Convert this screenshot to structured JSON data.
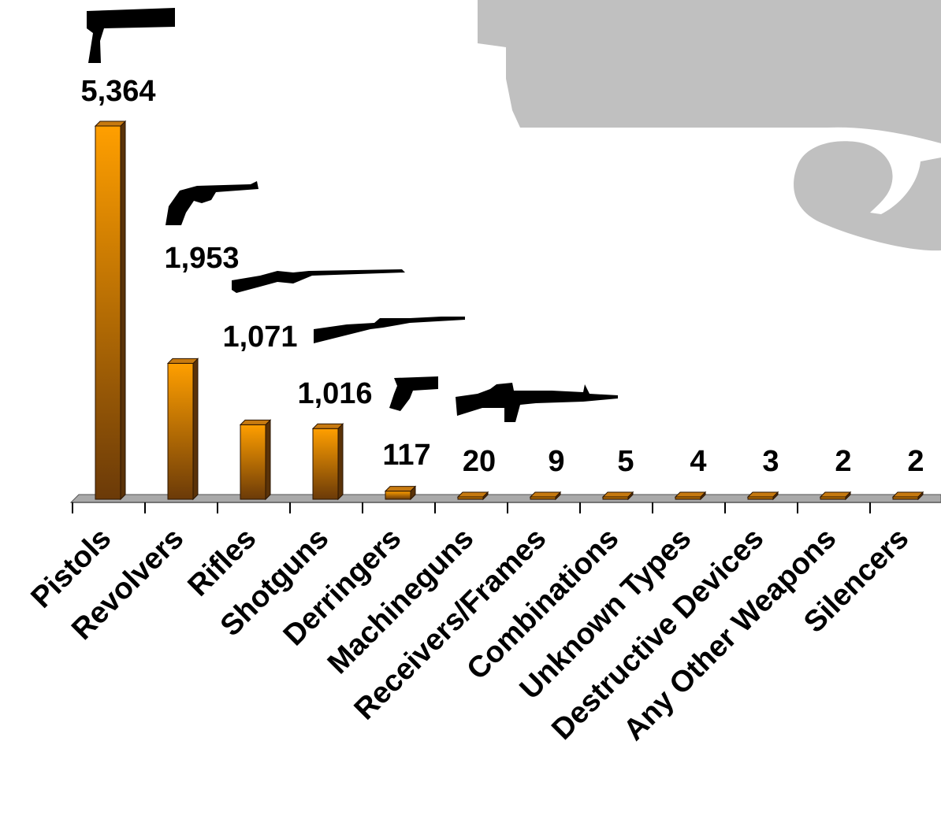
{
  "chart_data": {
    "type": "bar",
    "categories": [
      "Pistols",
      "Revolvers",
      "Rifles",
      "Shotguns",
      "Derringers",
      "Machineguns",
      "Receivers/Frames",
      "Combinations",
      "Unknown Types",
      "Destructive Devices",
      "Any Other Weapons",
      "Silencers"
    ],
    "values": [
      5364,
      1953,
      1071,
      1016,
      117,
      20,
      9,
      5,
      4,
      3,
      2,
      2
    ],
    "value_labels": [
      "5,364",
      "1,953",
      "1,071",
      "1,016",
      "117",
      "20",
      "9",
      "5",
      "4",
      "3",
      "2",
      "2"
    ],
    "title": "",
    "xlabel": "",
    "ylabel": "",
    "ylim": [
      0,
      5364
    ],
    "grid": false,
    "legend": "none"
  },
  "colors": {
    "bar_top": "#ff9f00",
    "bar_bottom": "#6b3a08",
    "bar_side": "#5a3208",
    "bar_cap": "#c77a10",
    "floor": "#a9a9a9",
    "background_gun": "#c0c0c0",
    "icon": "#000000"
  },
  "icons": [
    "pistol-icon",
    "revolver-icon",
    "rifle-icon",
    "shotgun-icon",
    "derringer-icon",
    "machinegun-icon",
    "background-pistol-icon"
  ]
}
